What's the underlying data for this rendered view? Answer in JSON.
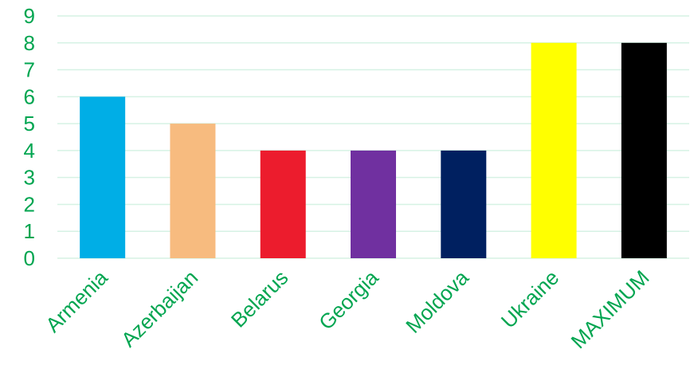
{
  "chart_data": {
    "type": "bar",
    "title": "",
    "xlabel": "",
    "ylabel": "",
    "categories": [
      "Armenia",
      "Azerbaijan",
      "Belarus",
      "Georgia",
      "Moldova",
      "Ukraine",
      "MAXIMUM"
    ],
    "values": [
      6,
      5,
      4,
      4,
      4,
      8,
      8
    ],
    "bar_colors": [
      "#00aee6",
      "#f7bb7f",
      "#ec1c2d",
      "#7030a0",
      "#002060",
      "#ffff00",
      "#000000"
    ],
    "ylim": [
      0,
      9
    ],
    "yticks": [
      "0",
      "1",
      "2",
      "3",
      "4",
      "5",
      "6",
      "7",
      "8",
      "9"
    ],
    "grid": true,
    "legend": "none",
    "label_color": "#00a550",
    "grid_color": "#d6f2e4"
  }
}
